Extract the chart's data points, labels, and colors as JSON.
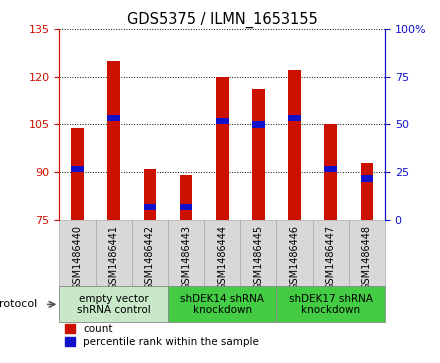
{
  "title": "GDS5375 / ILMN_1653155",
  "samples": [
    "GSM1486440",
    "GSM1486441",
    "GSM1486442",
    "GSM1486443",
    "GSM1486444",
    "GSM1486445",
    "GSM1486446",
    "GSM1486447",
    "GSM1486448"
  ],
  "count_values": [
    104,
    125,
    91,
    89,
    120,
    116,
    122,
    105,
    93
  ],
  "percentile_values": [
    91,
    107,
    79,
    79,
    106,
    105,
    107,
    91,
    88
  ],
  "y_min": 75,
  "y_max": 135,
  "y_ticks_left": [
    75,
    90,
    105,
    120,
    135
  ],
  "y_ticks_right_labels": [
    "0",
    "25",
    "50",
    "75",
    "100%"
  ],
  "bar_color": "#cc1100",
  "blue_color": "#1111cc",
  "groups": [
    {
      "label": "empty vector\nshRNA control",
      "start": 0,
      "end": 3
    },
    {
      "label": "shDEK14 shRNA\nknockdown",
      "start": 3,
      "end": 6
    },
    {
      "label": "shDEK17 shRNA\nknockdown",
      "start": 6,
      "end": 9
    }
  ],
  "group_colors": [
    "#c8e8c8",
    "#44cc44",
    "#44cc44"
  ],
  "protocol_label": "protocol",
  "legend_count_label": "count",
  "legend_pct_label": "percentile rank within the sample",
  "bar_width": 0.35,
  "background_color": "#ffffff",
  "plot_bg_color": "#ffffff",
  "xticklabel_bg": "#d8d8d8"
}
